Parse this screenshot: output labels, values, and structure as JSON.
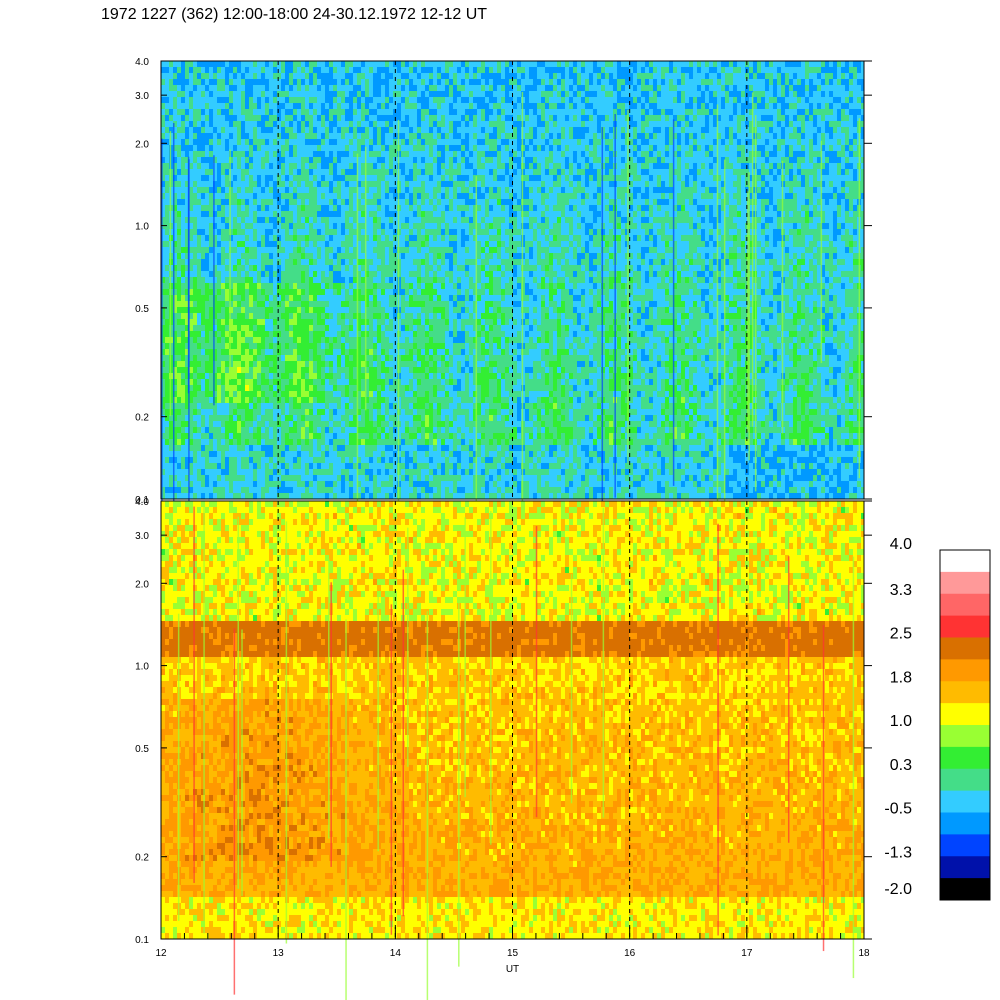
{
  "title": "1972 1227 (362) 12:00-18:00 24-30.12.1972  12-12 UT",
  "chart_data": [
    {
      "type": "heatmap",
      "panel": "top",
      "x_range": [
        12,
        18
      ],
      "y_scale": "log",
      "y_range": [
        0.1,
        4.0
      ],
      "y_ticks": [
        "0.1",
        "0.2",
        "0.5",
        "1.0",
        "2.0",
        "3.0",
        "4.0"
      ],
      "y_tick_values": [
        0.1,
        0.2,
        0.5,
        1.0,
        2.0,
        3.0,
        4.0
      ],
      "vertical_markers": [
        13,
        14,
        15,
        16,
        17
      ],
      "dominant_levels": [
        "green",
        "blue"
      ]
    },
    {
      "type": "heatmap",
      "panel": "bottom",
      "x_range": [
        12,
        18
      ],
      "y_scale": "log",
      "y_range": [
        0.1,
        4.0
      ],
      "y_ticks": [
        "0.1",
        "0.2",
        "0.5",
        "1.0",
        "2.0",
        "3.0",
        "4.0"
      ],
      "y_tick_values": [
        0.1,
        0.2,
        0.5,
        1.0,
        2.0,
        3.0,
        4.0
      ],
      "x_ticks": [
        "12",
        "13",
        "14",
        "15",
        "16",
        "17",
        "18"
      ],
      "x_tick_values": [
        12,
        13,
        14,
        15,
        16,
        17,
        18
      ],
      "xlabel": "UT",
      "vertical_markers": [
        13,
        14,
        15,
        16,
        17
      ],
      "dominant_levels": [
        "orange",
        "yellow"
      ],
      "band_near_y": 0.9
    }
  ],
  "colorbar": {
    "labels": [
      "4.0",
      "3.3",
      "2.5",
      "1.8",
      "1.0",
      "0.3",
      "-0.5",
      "-1.3",
      "-2.0"
    ],
    "colors": [
      "#ffffff",
      "#ff9999",
      "#ff6666",
      "#ff3333",
      "#d97000",
      "#ff9900",
      "#ffbb00",
      "#ffff00",
      "#99ff33",
      "#33ee33",
      "#44dd88",
      "#33ccff",
      "#0099ff",
      "#0044ff",
      "#0011aa",
      "#000000"
    ]
  }
}
